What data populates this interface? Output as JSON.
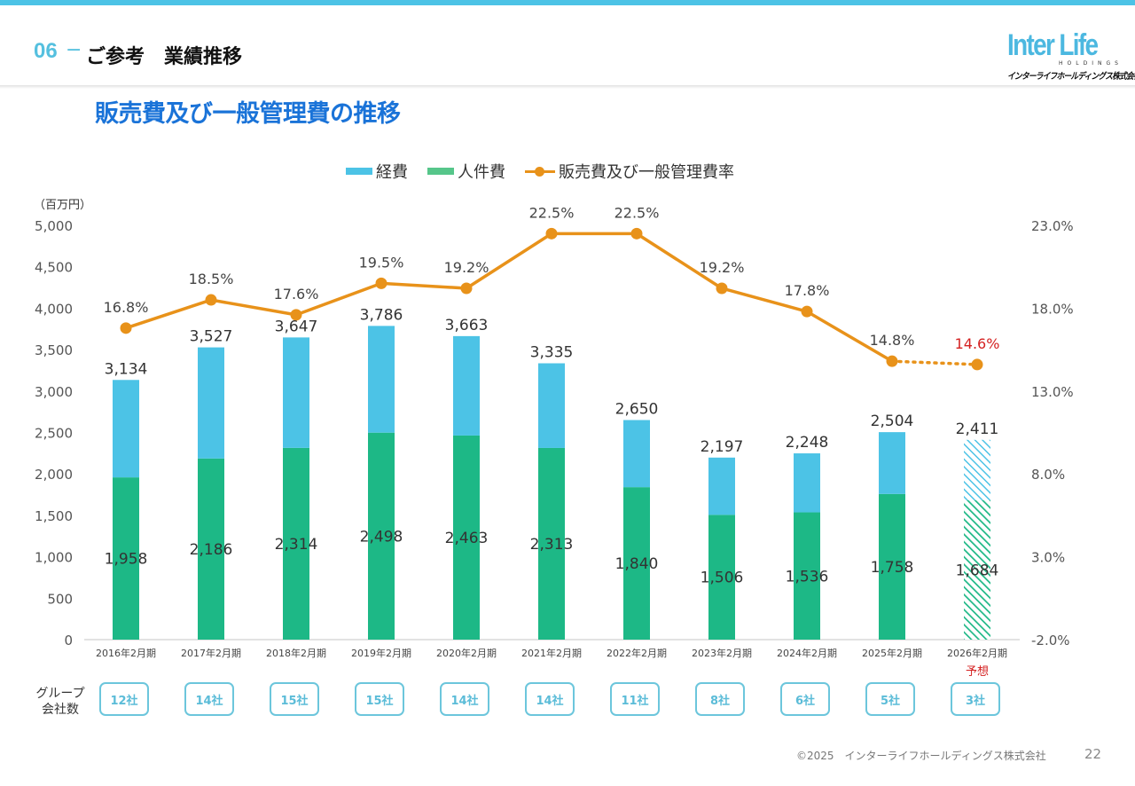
{
  "header": {
    "section_number": "06",
    "section_dash": "−",
    "section_title": "ご参考　業績推移",
    "logo": {
      "main": "Inter Life",
      "sub": "HOLDINGS",
      "jp": "インターライフホールディングス株式会社"
    }
  },
  "colors": {
    "expenses": "#4cc3e6",
    "personnel": "#1db886",
    "ratio_line": "#e8921a",
    "forecast_text": "#d42020",
    "title_blue": "#1a73d8",
    "accent_cyan": "#55c0df"
  },
  "chart_data": {
    "type": "bar",
    "title": "販売費及び一般管理費の推移",
    "unit_label": "（百万円）",
    "legend": [
      {
        "name": "経費",
        "kind": "bar",
        "color": "#4cc3e6"
      },
      {
        "name": "人件費",
        "kind": "bar",
        "color": "#1db886"
      },
      {
        "name": "販売費及び一般管理費率",
        "kind": "line",
        "color": "#e8921a"
      }
    ],
    "legend_position": "top-center",
    "categories": [
      "2016年2月期",
      "2017年2月期",
      "2018年2月期",
      "2019年2月期",
      "2020年2月期",
      "2021年2月期",
      "2022年2月期",
      "2023年2月期",
      "2024年2月期",
      "2025年2月期",
      "2026年2月期"
    ],
    "forecast_index": 10,
    "forecast_note": "予想",
    "series": [
      {
        "name": "人件費",
        "type": "bar",
        "stack": "sga",
        "values": [
          1958,
          2186,
          2314,
          2498,
          2463,
          2313,
          1840,
          1506,
          1536,
          1758,
          1684
        ]
      },
      {
        "name": "経費",
        "type": "bar",
        "stack": "sga",
        "values": [
          1176,
          1341,
          1333,
          1288,
          1200,
          1022,
          810,
          691,
          712,
          746,
          727
        ]
      },
      {
        "name": "販売費及び一般管理費率",
        "type": "line",
        "axis": "right",
        "unit": "%",
        "values": [
          16.8,
          18.5,
          17.6,
          19.5,
          19.2,
          22.5,
          22.5,
          19.2,
          17.8,
          14.8,
          14.6
        ]
      }
    ],
    "totals": [
      3134,
      3527,
      3647,
      3786,
      3663,
      3335,
      2650,
      2197,
      2248,
      2504,
      2411
    ],
    "total_labels": [
      "3,134",
      "3,527",
      "3,647",
      "3,786",
      "3,663",
      "3,335",
      "2,650",
      "2,197",
      "2,248",
      "2,504",
      "2,411"
    ],
    "personnel_labels": [
      "1,958",
      "2,186",
      "2,314",
      "2,498",
      "2,463",
      "2,313",
      "1,840",
      "1,506",
      "1,536",
      "1,758",
      "1,684"
    ],
    "ratio_labels": [
      "16.8%",
      "18.5%",
      "17.6%",
      "19.5%",
      "19.2%",
      "22.5%",
      "22.5%",
      "19.2%",
      "17.8%",
      "14.8%",
      "14.6%"
    ],
    "y_left": {
      "min": 0,
      "max": 5000,
      "step": 500,
      "ticks": [
        "0",
        "500",
        "1,000",
        "1,500",
        "2,000",
        "2,500",
        "3,000",
        "3,500",
        "4,000",
        "4,500",
        "5,000"
      ]
    },
    "y_right": {
      "min": -2.0,
      "max": 23.0,
      "step": 5.0,
      "ticks": [
        "-2.0%",
        "3.0%",
        "8.0%",
        "13.0%",
        "18.0%",
        "23.0%"
      ]
    },
    "grid": false
  },
  "group_companies": {
    "label_line1": "グループ",
    "label_line2": "会社数",
    "counts": [
      "12社",
      "14社",
      "15社",
      "15社",
      "14社",
      "14社",
      "11社",
      "8社",
      "6社",
      "5社",
      "3社"
    ]
  },
  "footer": {
    "copyright": "©2025　インターライフホールディングス株式会社",
    "page": "22"
  }
}
